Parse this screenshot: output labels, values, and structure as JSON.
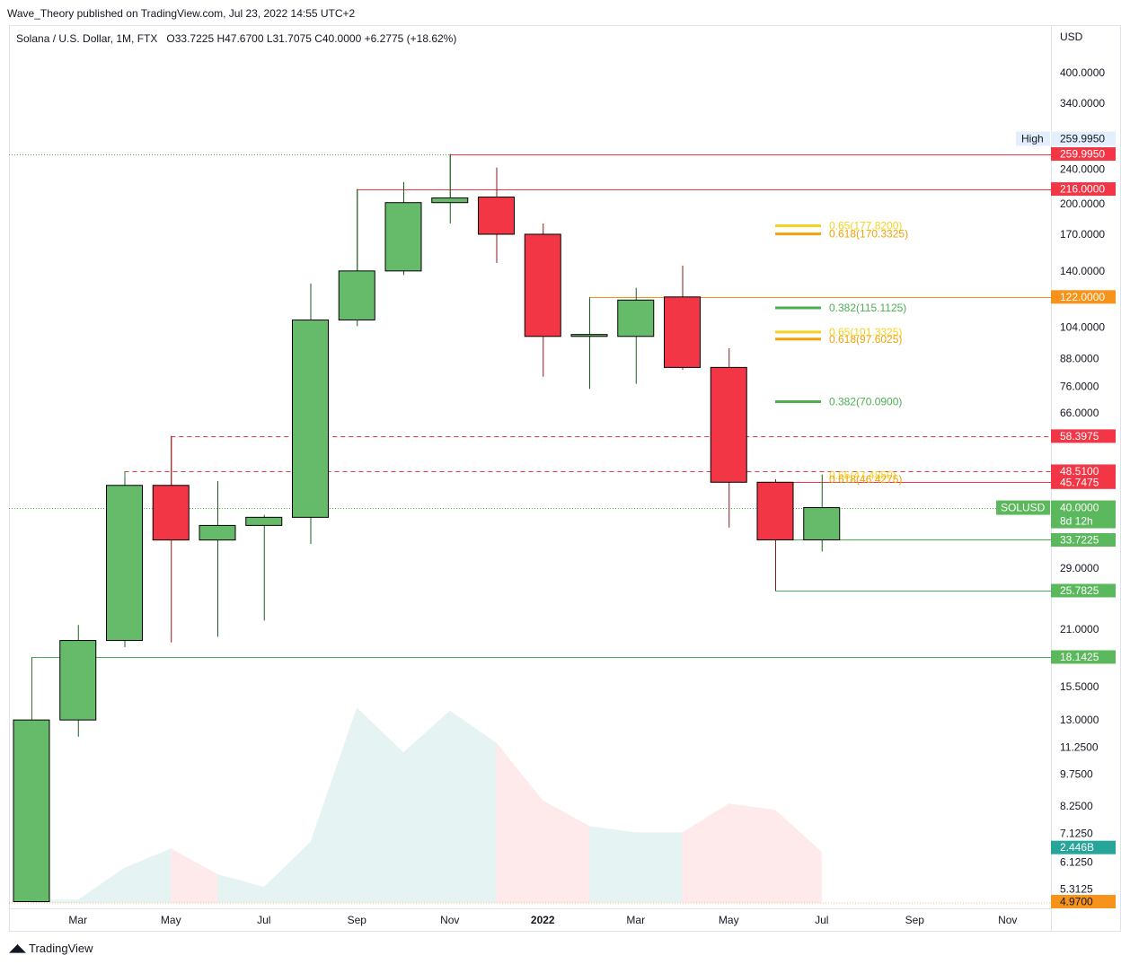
{
  "header": {
    "publisher": "Wave_Theory published on TradingView.com, Jul 23, 2022 14:55 UTC+2",
    "symbol": "Solana / U.S. Dollar, 1M, FTX",
    "ohlc": "O33.7225  H47.6700  L31.7075  C40.0000  +6.2775 (+18.62%)"
  },
  "footer": {
    "brand": "TradingView"
  },
  "chart_data": {
    "type": "candlestick",
    "currency_label": "USD",
    "y_scale": "log",
    "ylim": [
      4.9,
      480
    ],
    "y_ticks": [
      "400.0000",
      "340.0000",
      "240.0000",
      "200.0000",
      "170.0000",
      "140.0000",
      "104.0000",
      "88.0000",
      "76.0000",
      "66.0000",
      "29.0000",
      "21.0000",
      "15.5000",
      "13.0000",
      "11.2500",
      "9.7500",
      "8.2500",
      "7.1250",
      "6.1250",
      "5.3125"
    ],
    "x_ticks": [
      {
        "label": "Mar",
        "index": 1,
        "bold": false
      },
      {
        "label": "May",
        "index": 3,
        "bold": false
      },
      {
        "label": "Jul",
        "index": 5,
        "bold": false
      },
      {
        "label": "Sep",
        "index": 7,
        "bold": false
      },
      {
        "label": "Nov",
        "index": 9,
        "bold": false
      },
      {
        "label": "2022",
        "index": 11,
        "bold": true
      },
      {
        "label": "Mar",
        "index": 13,
        "bold": false
      },
      {
        "label": "May",
        "index": 15,
        "bold": false
      },
      {
        "label": "Jul",
        "index": 17,
        "bold": false
      },
      {
        "label": "Sep",
        "index": 19,
        "bold": false
      },
      {
        "label": "Nov",
        "index": 21,
        "bold": false
      }
    ],
    "candles": [
      {
        "o": 4.97,
        "h": 13.0,
        "l": 4.97,
        "c": 13.0
      },
      {
        "o": 13.0,
        "h": 21.5,
        "l": 11.9,
        "c": 19.8
      },
      {
        "o": 19.8,
        "h": 47.0,
        "l": 19.1,
        "c": 45.0
      },
      {
        "o": 45.0,
        "h": 58.4,
        "l": 19.6,
        "c": 33.7
      },
      {
        "o": 33.7,
        "h": 46.0,
        "l": 20.2,
        "c": 36.4
      },
      {
        "o": 36.4,
        "h": 38.5,
        "l": 22.0,
        "c": 38.0
      },
      {
        "o": 38.0,
        "h": 131.0,
        "l": 33.0,
        "c": 108.0
      },
      {
        "o": 108.0,
        "h": 216.0,
        "l": 104.5,
        "c": 140.0
      },
      {
        "o": 140.0,
        "h": 224.0,
        "l": 137.0,
        "c": 201.0
      },
      {
        "o": 201.0,
        "h": 259.995,
        "l": 180.0,
        "c": 206.0
      },
      {
        "o": 207.0,
        "h": 242.0,
        "l": 146.0,
        "c": 170.0
      },
      {
        "o": 170.0,
        "h": 180.0,
        "l": 80.0,
        "c": 99.0
      },
      {
        "o": 99.0,
        "h": 121.0,
        "l": 75.0,
        "c": 100.0
      },
      {
        "o": 99.0,
        "h": 128.0,
        "l": 77.0,
        "c": 120.0
      },
      {
        "o": 122.0,
        "h": 144.0,
        "l": 83.0,
        "c": 84.0
      },
      {
        "o": 84.0,
        "h": 93.0,
        "l": 36.0,
        "c": 45.7475
      },
      {
        "o": 45.7475,
        "h": 46.5,
        "l": 25.7825,
        "c": 33.7225
      },
      {
        "o": 33.7225,
        "h": 47.67,
        "l": 31.7075,
        "c": 40.0
      }
    ],
    "volume": [
      0.1,
      0.1,
      1.1,
      1.7,
      0.9,
      0.5,
      1.9,
      6.1,
      4.7,
      6.0,
      5.0,
      3.2,
      2.4,
      2.2,
      2.2,
      3.1,
      2.9,
      1.6
    ],
    "volume_max": 7.0,
    "levels": [
      {
        "price": 259.995,
        "label": "259.9950",
        "color": "#f23645",
        "style": "solid",
        "from": 9
      },
      {
        "price": 216.0,
        "label": "216.0000",
        "color": "#f23645",
        "style": "solid",
        "from": 7
      },
      {
        "price": 122.0,
        "label": "122.0000",
        "color": "#f7931a",
        "style": "solid",
        "from": 12
      },
      {
        "price": 58.3975,
        "label": "58.3975",
        "color": "#f23645",
        "style": "dashed",
        "from": 3
      },
      {
        "price": 48.51,
        "label": "48.5100",
        "color": "#f23645",
        "style": "dashed",
        "from": 2
      },
      {
        "price": 45.7475,
        "label": "45.7475",
        "color": "#f23645",
        "style": "solid",
        "from": 16
      },
      {
        "price": 33.7225,
        "label": "33.7225",
        "color": "#4caf50",
        "style": "solid",
        "from": 16
      },
      {
        "price": 25.7825,
        "label": "25.7825",
        "color": "#4caf50",
        "style": "solid",
        "from": 16
      },
      {
        "price": 18.1425,
        "label": "18.1425",
        "color": "#4caf50",
        "style": "solid",
        "from": 0
      }
    ],
    "high_marker": {
      "price": 259.995,
      "label": "High",
      "value": "259.9950"
    },
    "current": {
      "price": 40.0,
      "symbol": "SOLUSD",
      "value": "40.0000",
      "countdown": "8d 12h"
    },
    "volume_tags": [
      {
        "label": "2.446B",
        "color": "#26a69a",
        "price": 6.62
      },
      {
        "label": "4.9700",
        "color": "#f7931a",
        "price": 4.97
      }
    ],
    "fibs": [
      {
        "label": "0.65(177.8200)",
        "price": 177.82,
        "color": "#f5d21f"
      },
      {
        "label": "0.618(170.3325)",
        "price": 170.3325,
        "color": "#f0a30a"
      },
      {
        "label": "0.382(115.1125)",
        "price": 115.1125,
        "color": "#4caf50"
      },
      {
        "label": "0.65(101.3325)",
        "price": 101.3325,
        "color": "#f5d21f"
      },
      {
        "label": "0.618(97.6025)",
        "price": 97.6025,
        "color": "#f0a30a"
      },
      {
        "label": "0.382(70.0900)",
        "price": 70.09,
        "color": "#4caf50"
      },
      {
        "label": "0.65(47.4850)",
        "price": 47.485,
        "color": "#f5d21f"
      },
      {
        "label": "0.618(46.4275)",
        "price": 46.4275,
        "color": "#f0a30a"
      }
    ],
    "colors": {
      "up": "#66bb6a",
      "down": "#f23645",
      "grid": "#f0f3fa",
      "axis": "#131722"
    }
  }
}
